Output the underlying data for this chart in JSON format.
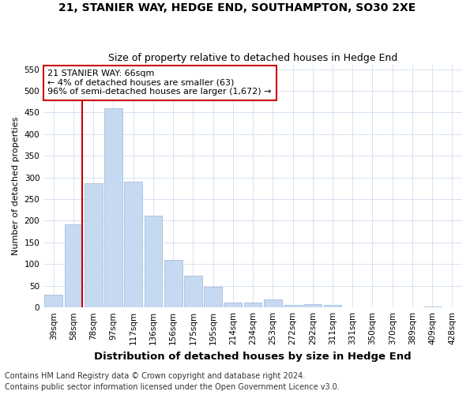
{
  "title": "21, STANIER WAY, HEDGE END, SOUTHAMPTON, SO30 2XE",
  "subtitle": "Size of property relative to detached houses in Hedge End",
  "xlabel": "Distribution of detached houses by size in Hedge End",
  "ylabel": "Number of detached properties",
  "categories": [
    "39sqm",
    "58sqm",
    "78sqm",
    "97sqm",
    "117sqm",
    "136sqm",
    "156sqm",
    "175sqm",
    "195sqm",
    "214sqm",
    "234sqm",
    "253sqm",
    "272sqm",
    "292sqm",
    "311sqm",
    "331sqm",
    "350sqm",
    "370sqm",
    "389sqm",
    "409sqm",
    "428sqm"
  ],
  "values": [
    30,
    192,
    287,
    460,
    290,
    212,
    110,
    73,
    47,
    12,
    11,
    19,
    6,
    8,
    5,
    0,
    0,
    0,
    0,
    3,
    0
  ],
  "bar_color": "#c5d9f1",
  "bar_edge_color": "#9ab5d5",
  "red_line_color": "#cc0000",
  "annotation_text": "21 STANIER WAY: 66sqm\n← 4% of detached houses are smaller (63)\n96% of semi-detached houses are larger (1,672) →",
  "annotation_box_facecolor": "#ffffff",
  "annotation_box_edgecolor": "#cc0000",
  "ylim": [
    0,
    560
  ],
  "yticks": [
    0,
    50,
    100,
    150,
    200,
    250,
    300,
    350,
    400,
    450,
    500,
    550
  ],
  "footer_line1": "Contains HM Land Registry data © Crown copyright and database right 2024.",
  "footer_line2": "Contains public sector information licensed under the Open Government Licence v3.0.",
  "background_color": "#ffffff",
  "grid_color": "#c8d8ea",
  "title_fontsize": 10,
  "subtitle_fontsize": 9,
  "xlabel_fontsize": 9.5,
  "ylabel_fontsize": 8,
  "tick_fontsize": 7.5,
  "annotation_fontsize": 8,
  "footer_fontsize": 7
}
